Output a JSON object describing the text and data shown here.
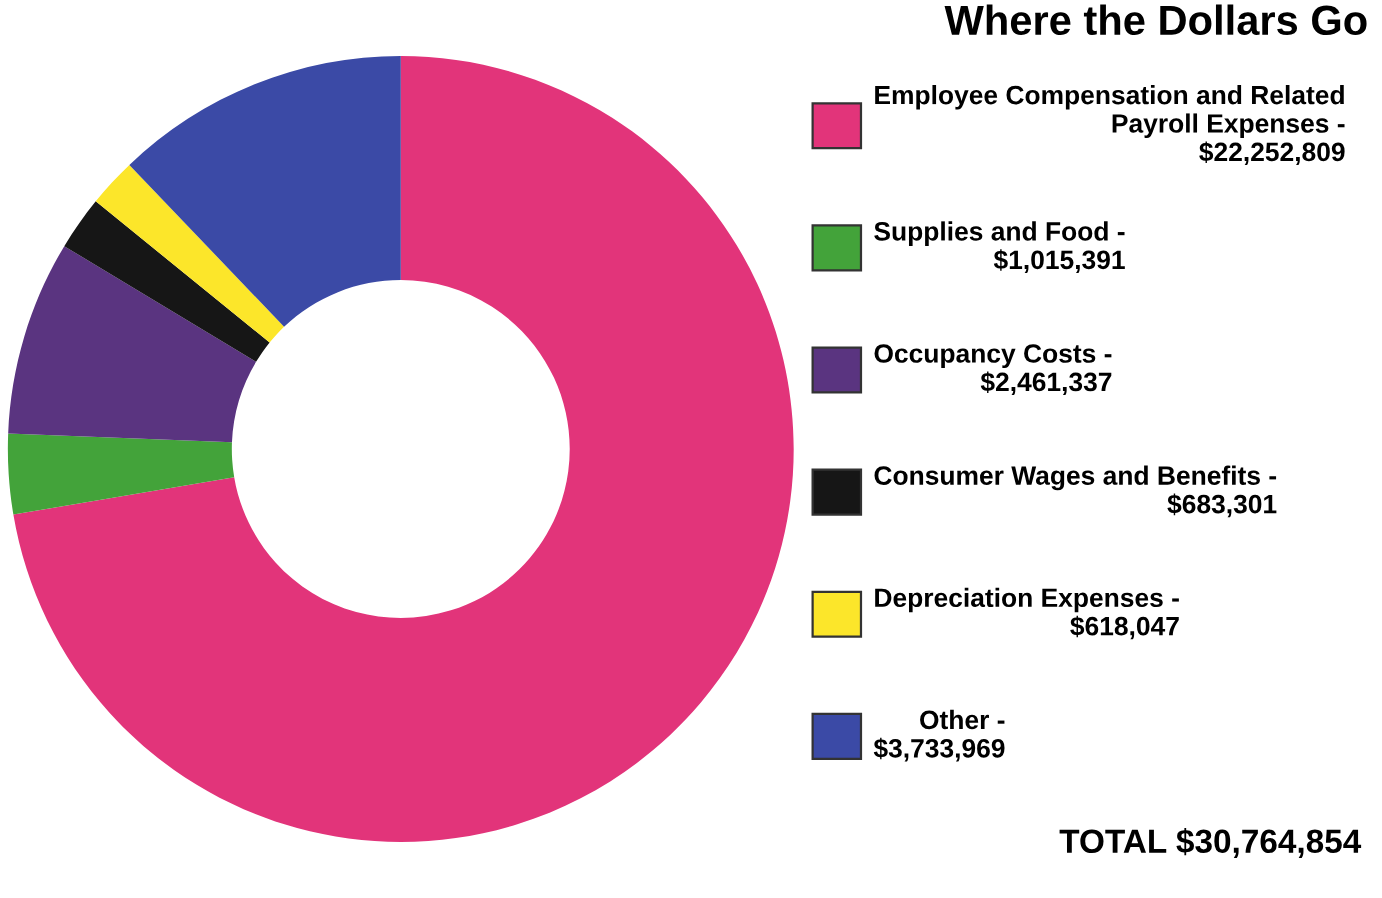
{
  "chart_data": {
    "type": "donut",
    "title": "Where the Dollars Go",
    "categories": [
      "Employee Compensation and Related Payroll Expenses -",
      "Supplies and Food -",
      "Occupancy Costs -",
      "Consumer Wages and Benefits -",
      "Depreciation Expenses -",
      "Other -"
    ],
    "value_labels": [
      "$22,252,809",
      "$1,015,391",
      "$2,461,337",
      "$683,301",
      "$618,047",
      "$3,733,969"
    ],
    "values": [
      22252809,
      1015391,
      2461337,
      683301,
      618047,
      3733969
    ],
    "colors": [
      "#e2347a",
      "#43a33a",
      "#5a3480",
      "#161616",
      "#fce62a",
      "#3b4aa6"
    ],
    "legend": "right",
    "annotations": [
      "TOTAL $30,764,854"
    ]
  }
}
